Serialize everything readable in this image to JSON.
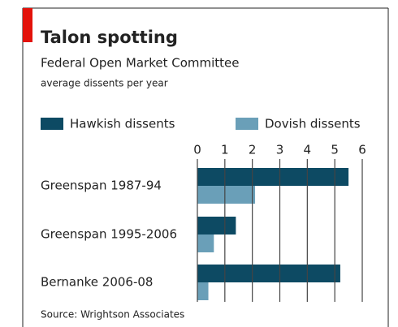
{
  "chart_data": {
    "type": "hbar",
    "title": "Talon spotting",
    "subtitle": "Federal Open Market Committee",
    "unit_note": "average dissents per year",
    "categories": [
      "Greenspan 1987-94",
      "Greenspan 1995-2006",
      "Bernanke 2006-08"
    ],
    "series": [
      {
        "name": "Hawkish dissents",
        "color": "#0d4a63",
        "values": [
          5.5,
          1.4,
          5.2
        ]
      },
      {
        "name": "Dovish dissents",
        "color": "#6a9fb8",
        "values": [
          2.1,
          0.6,
          0.4
        ]
      }
    ],
    "xlim": [
      0,
      6
    ],
    "xticks": [
      0,
      1,
      2,
      3,
      4,
      5,
      6
    ],
    "grid": true,
    "source": "Source: Wrightson Associates"
  }
}
